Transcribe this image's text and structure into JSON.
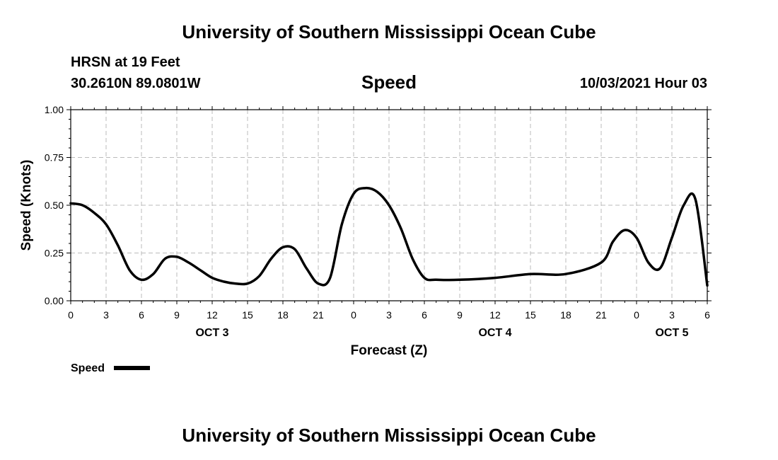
{
  "header": {
    "title_top": "University of Southern Mississippi Ocean Cube",
    "station": "HRSN at 19 Feet",
    "coords": "30.2610N  89.0801W",
    "chart_title": "Speed",
    "timestamp": "10/03/2021 Hour 03",
    "title_bottom": "University of Southern Mississippi Ocean Cube"
  },
  "legend": {
    "label": "Speed"
  },
  "colors": {
    "line": "#000000",
    "grid": "#bbbbbb"
  },
  "chart_data": {
    "type": "line",
    "title": "Speed",
    "xlabel": "Forecast (Z)",
    "ylabel": "Speed (Knots)",
    "xlim": [
      0,
      54
    ],
    "ylim": [
      0,
      1
    ],
    "x_unit": "forecast hours from OCT 3 00Z",
    "x_ticks": [
      0,
      3,
      6,
      9,
      12,
      15,
      18,
      21,
      24,
      27,
      30,
      33,
      36,
      39,
      42,
      45,
      48,
      51,
      54
    ],
    "x_tick_labels": [
      "0",
      "3",
      "6",
      "9",
      "12",
      "15",
      "18",
      "21",
      "0",
      "3",
      "6",
      "9",
      "12",
      "15",
      "18",
      "21",
      "0",
      "3",
      "6"
    ],
    "y_ticks": [
      0,
      0.25,
      0.5,
      0.75,
      1.0
    ],
    "y_tick_labels": [
      "0.00",
      "0.25",
      "0.50",
      "0.75",
      "1.00"
    ],
    "day_labels": [
      {
        "x": 12,
        "label": "OCT 3"
      },
      {
        "x": 36,
        "label": "OCT 4"
      },
      {
        "x": 51,
        "label": "OCT 5"
      }
    ],
    "grid": true,
    "legend_position": "bottom-left",
    "series": [
      {
        "name": "Speed",
        "x": [
          0,
          1,
          2,
          3,
          4,
          5,
          6,
          7,
          8,
          9,
          10,
          11,
          12,
          13,
          14,
          15,
          16,
          17,
          18,
          19,
          20,
          21,
          22,
          23,
          24,
          25,
          26,
          27,
          28,
          29,
          30,
          31,
          33,
          36,
          39,
          42,
          45,
          46,
          47,
          48,
          49,
          50,
          51,
          52,
          53,
          54
        ],
        "y": [
          0.51,
          0.5,
          0.46,
          0.4,
          0.29,
          0.16,
          0.11,
          0.14,
          0.22,
          0.23,
          0.2,
          0.16,
          0.12,
          0.1,
          0.09,
          0.09,
          0.13,
          0.22,
          0.28,
          0.27,
          0.17,
          0.09,
          0.12,
          0.4,
          0.56,
          0.59,
          0.57,
          0.5,
          0.38,
          0.22,
          0.12,
          0.11,
          0.11,
          0.12,
          0.14,
          0.14,
          0.2,
          0.31,
          0.37,
          0.33,
          0.2,
          0.17,
          0.33,
          0.5,
          0.53,
          0.08
        ]
      }
    ]
  }
}
